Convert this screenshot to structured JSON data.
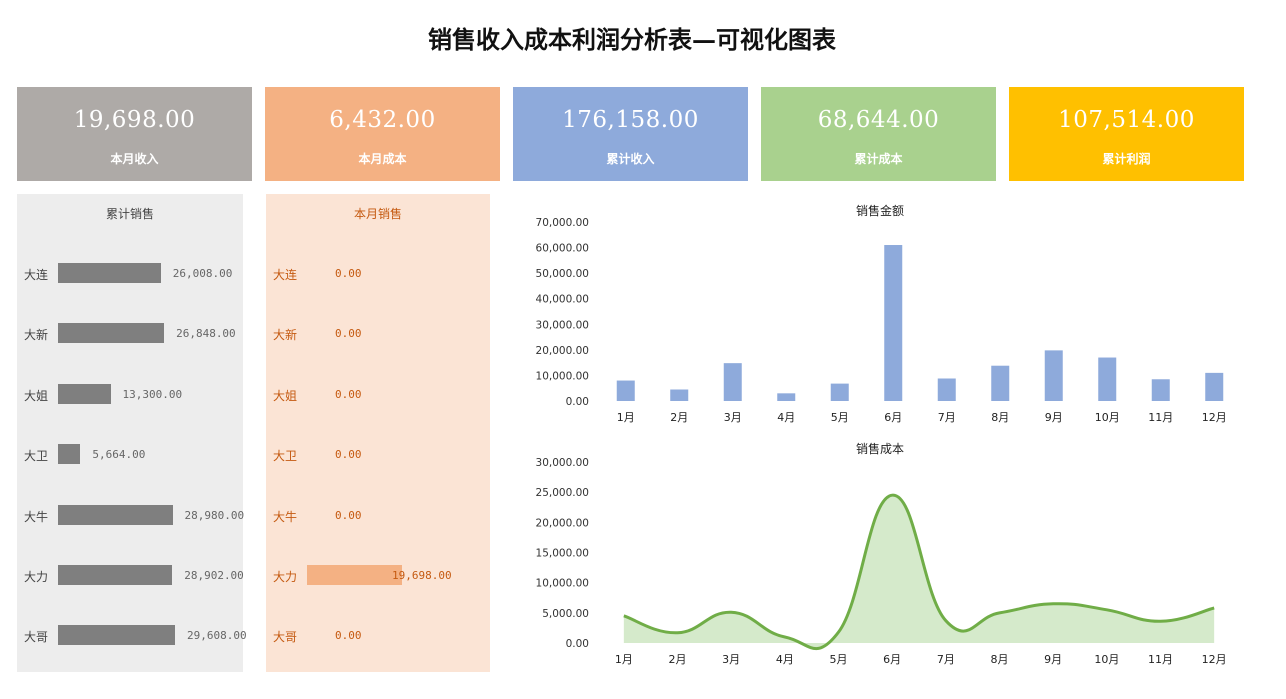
{
  "title": "销售收入成本利润分析表—可视化图表",
  "cards": [
    {
      "value": "19,698.00",
      "label": "本月收入",
      "color": "#aeaaa7"
    },
    {
      "value": "6,432.00",
      "label": "本月成本",
      "color": "#f4b183"
    },
    {
      "value": "176,158.00",
      "label": "累计收入",
      "color": "#8eaadb"
    },
    {
      "value": "68,644.00",
      "label": "累计成本",
      "color": "#a9d18e"
    },
    {
      "value": "107,514.00",
      "label": "累计利润",
      "color": "#ffc000"
    }
  ],
  "cumulative_sales": {
    "title": "累计销售",
    "bar_color": "#7f7f7f",
    "items": [
      {
        "name": "大连",
        "label": "26,008.00",
        "value": 26008
      },
      {
        "name": "大新",
        "label": "26,848.00",
        "value": 26848
      },
      {
        "name": "大姐",
        "label": "13,300.00",
        "value": 13300
      },
      {
        "name": "大卫",
        "label": "5,664.00",
        "value": 5664
      },
      {
        "name": "大牛",
        "label": "28,980.00",
        "value": 28980
      },
      {
        "name": "大力",
        "label": "28,902.00",
        "value": 28902
      },
      {
        "name": "大哥",
        "label": "29,608.00",
        "value": 29608
      }
    ]
  },
  "monthly_sales": {
    "title": "本月销售",
    "bar_color": "#f4b183",
    "items": [
      {
        "name": "大连",
        "label": "0.00",
        "value": 0
      },
      {
        "name": "大新",
        "label": "0.00",
        "value": 0
      },
      {
        "name": "大姐",
        "label": "0.00",
        "value": 0
      },
      {
        "name": "大卫",
        "label": "0.00",
        "value": 0
      },
      {
        "name": "大牛",
        "label": "0.00",
        "value": 0
      },
      {
        "name": "大力",
        "label": "19,698.00",
        "value": 19698
      },
      {
        "name": "大哥",
        "label": "0.00",
        "value": 0
      }
    ]
  },
  "chart_data": [
    {
      "type": "bar",
      "title": "销售金额",
      "categories": [
        "1月",
        "2月",
        "3月",
        "4月",
        "5月",
        "6月",
        "7月",
        "8月",
        "9月",
        "10月",
        "11月",
        "12月"
      ],
      "values": [
        8000,
        4500,
        14800,
        3000,
        6800,
        61000,
        8800,
        13800,
        19800,
        17000,
        8500,
        11000
      ],
      "ylim": [
        0,
        70000
      ],
      "yticks": [
        "0.00",
        "10,000.00",
        "20,000.00",
        "30,000.00",
        "40,000.00",
        "50,000.00",
        "60,000.00",
        "70,000.00"
      ],
      "color": "#8eaadb"
    },
    {
      "type": "area",
      "title": "销售成本",
      "categories": [
        "1月",
        "2月",
        "3月",
        "4月",
        "5月",
        "6月",
        "7月",
        "8月",
        "9月",
        "10月",
        "11月",
        "12月"
      ],
      "values": [
        4500,
        1700,
        5100,
        1000,
        1800,
        24500,
        3700,
        5000,
        6500,
        5500,
        3600,
        5800
      ],
      "ylim": [
        0,
        30000
      ],
      "yticks": [
        "0.00",
        "5,000.00",
        "10,000.00",
        "15,000.00",
        "20,000.00",
        "25,000.00",
        "30,000.00"
      ],
      "line_color": "#70ad47",
      "fill_color": "#d5eacb"
    }
  ]
}
